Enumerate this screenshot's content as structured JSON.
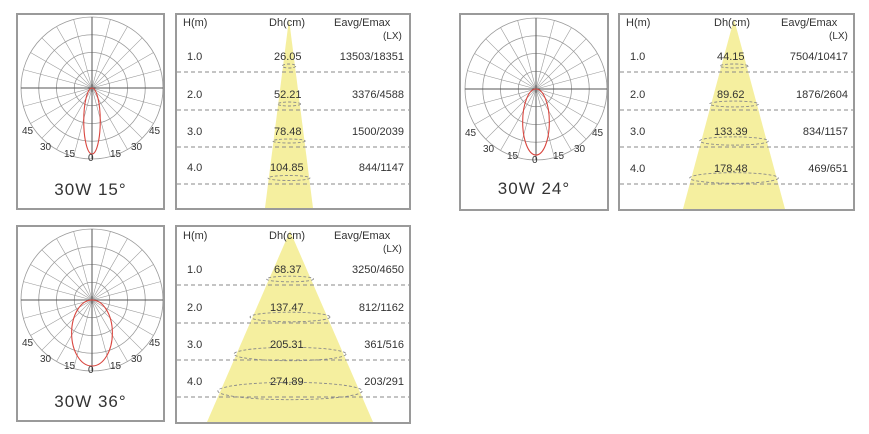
{
  "columns": {
    "height": "H(m)",
    "diameter": "Dh(cm)",
    "illuminance": "Eavg/Emax",
    "unit": "(LX)"
  },
  "angle_labels": {
    "a45": "45",
    "a30": "30",
    "a15": "15",
    "a0": "0"
  },
  "beams": [
    {
      "label": "30W 15°",
      "rows": [
        {
          "h": "1.0",
          "dh": "26.05",
          "e": "13503/18351"
        },
        {
          "h": "2.0",
          "dh": "52.21",
          "e": "3376/4588"
        },
        {
          "h": "3.0",
          "dh": "78.48",
          "e": "1500/2039"
        },
        {
          "h": "4.0",
          "dh": "104.85",
          "e": "844/1147"
        }
      ]
    },
    {
      "label": "30W 24°",
      "rows": [
        {
          "h": "1.0",
          "dh": "44.15",
          "e": "7504/10417"
        },
        {
          "h": "2.0",
          "dh": "89.62",
          "e": "1876/2604"
        },
        {
          "h": "3.0",
          "dh": "133.39",
          "e": "834/1157"
        },
        {
          "h": "4.0",
          "dh": "178.48",
          "e": "469/651"
        }
      ]
    },
    {
      "label": "30W 36°",
      "rows": [
        {
          "h": "1.0",
          "dh": "68.37",
          "e": "3250/4650"
        },
        {
          "h": "2.0",
          "dh": "137.47",
          "e": "812/1162"
        },
        {
          "h": "3.0",
          "dh": "205.31",
          "e": "361/516"
        },
        {
          "h": "4.0",
          "dh": "274.89",
          "e": "203/291"
        }
      ]
    }
  ],
  "colors": {
    "beam_fill": "#f5ef9f",
    "curve": "#d9463f",
    "grid": "#9a9a9a",
    "border": "#9a9a9a",
    "dash": "#8a8a8a"
  }
}
